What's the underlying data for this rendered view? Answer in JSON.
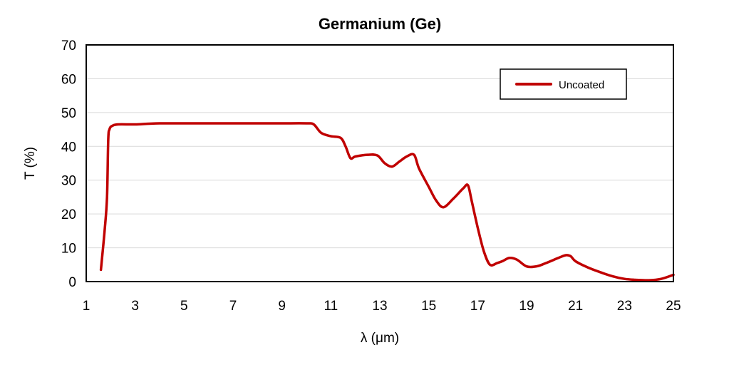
{
  "chart_data": {
    "type": "line",
    "title": "Germanium (Ge)",
    "xlabel": "λ (μm)",
    "ylabel": "T (%)",
    "xlim": [
      1,
      25
    ],
    "ylim": [
      0,
      70
    ],
    "xticks": [
      1,
      3,
      5,
      7,
      9,
      11,
      13,
      15,
      17,
      19,
      21,
      23,
      25
    ],
    "yticks": [
      0,
      10,
      20,
      30,
      40,
      50,
      60,
      70
    ],
    "grid": "horizontal",
    "legend_position": "top-right",
    "series": [
      {
        "name": "Uncoated",
        "color": "#C00000",
        "x": [
          1.6,
          1.75,
          1.85,
          1.9,
          1.95,
          2.05,
          2.3,
          3.0,
          4.0,
          6.0,
          8.0,
          9.0,
          10.0,
          10.3,
          10.6,
          11.0,
          11.4,
          11.6,
          11.8,
          12.0,
          12.5,
          12.9,
          13.2,
          13.5,
          13.8,
          14.1,
          14.4,
          14.6,
          15.0,
          15.3,
          15.6,
          16.0,
          16.4,
          16.6,
          16.75,
          17.0,
          17.25,
          17.5,
          17.8,
          18.0,
          18.3,
          18.6,
          19.0,
          19.4,
          19.8,
          20.3,
          20.6,
          20.8,
          21.0,
          21.5,
          22.0,
          22.5,
          23.0,
          23.5,
          24.0,
          24.5,
          25.0
        ],
        "y": [
          3.5,
          15,
          25,
          42,
          45,
          46,
          46.5,
          46.5,
          46.8,
          46.8,
          46.8,
          46.8,
          46.8,
          46.5,
          44,
          43,
          42.5,
          40,
          36.5,
          37,
          37.5,
          37.3,
          35,
          34,
          35.5,
          37,
          37.5,
          33.5,
          28,
          24,
          22,
          24.5,
          27.5,
          28.5,
          24,
          16,
          9,
          5,
          5.5,
          6,
          7,
          6.5,
          4.5,
          4.5,
          5.5,
          7,
          7.8,
          7.5,
          6,
          4.2,
          2.8,
          1.6,
          0.8,
          0.5,
          0.4,
          0.8,
          2.0
        ]
      }
    ]
  }
}
